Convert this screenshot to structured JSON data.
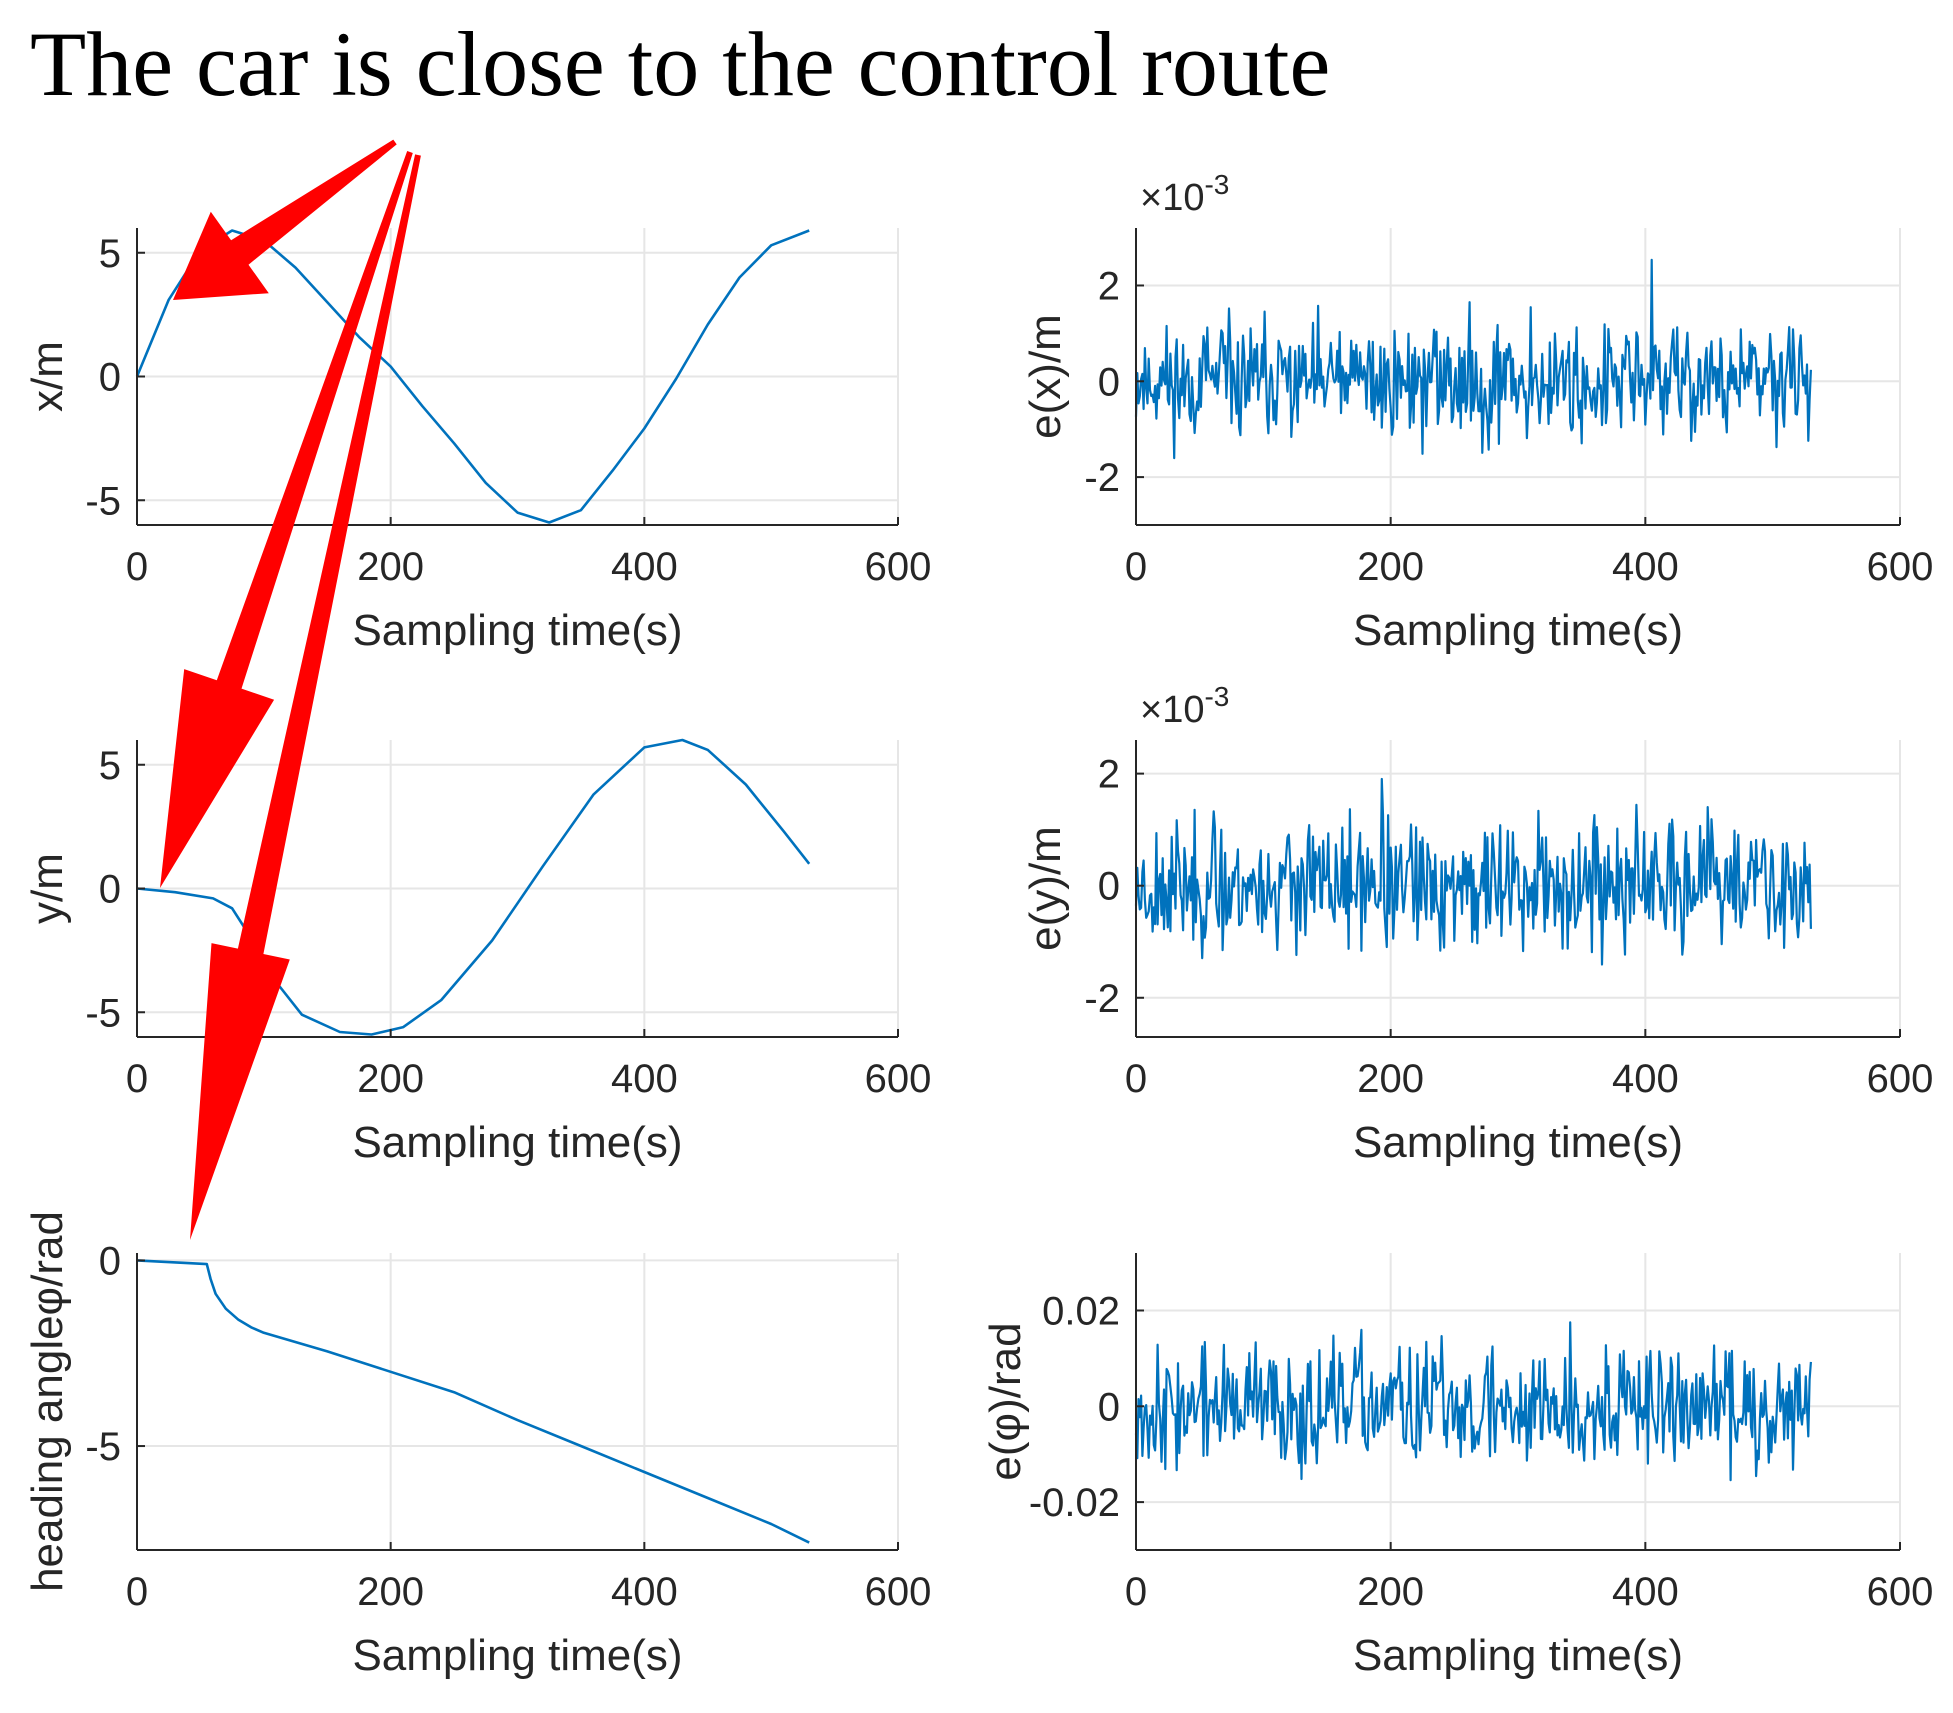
{
  "title": "The car is close to the control route",
  "colors": {
    "line": "#0072BD",
    "grid": "#e6e6e6",
    "axis": "#262626",
    "arrow": "#ff0000"
  },
  "chart_data": [
    {
      "type": "line",
      "id": "x",
      "xlabel": "Sampling time(s)",
      "ylabel": "x/m",
      "xlim": [
        0,
        600
      ],
      "ylim": [
        -6,
        6
      ],
      "xticks": [
        0,
        200,
        400,
        600
      ],
      "xtick_labels": [
        "0",
        "200",
        "400",
        "600"
      ],
      "yticks": [
        -5,
        0,
        5
      ],
      "ytick_labels": [
        "-5",
        "0",
        "5"
      ],
      "grid": true,
      "series": [
        {
          "x": [
            0,
            25,
            50,
            75,
            100,
            125,
            150,
            175,
            200,
            225,
            250,
            275,
            300,
            325,
            350,
            375,
            400,
            425,
            450,
            475,
            500,
            530
          ],
          "y": [
            0,
            3.1,
            5.1,
            5.9,
            5.5,
            4.4,
            3.0,
            1.6,
            0.4,
            -1.2,
            -2.7,
            -4.3,
            -5.5,
            -5.9,
            -5.4,
            -3.8,
            -2.1,
            -0.1,
            2.1,
            4.0,
            5.3,
            5.9
          ]
        }
      ]
    },
    {
      "type": "line",
      "id": "ex",
      "xlabel": "Sampling time(s)",
      "ylabel": "e(x)/m",
      "exponent": "×10-3",
      "xlim": [
        0,
        600
      ],
      "ylim": [
        -3,
        3.2
      ],
      "xticks": [
        0,
        200,
        400,
        600
      ],
      "xtick_labels": [
        "0",
        "200",
        "400",
        "600"
      ],
      "yticks": [
        -2,
        0,
        2
      ],
      "ytick_labels": [
        "-2",
        "0",
        "2"
      ],
      "grid": true,
      "series": [
        {
          "noise": {
            "n": 530,
            "x_end": 530,
            "amplitude": 0.9,
            "min": -3.0,
            "max": 3.2,
            "seed": 11
          }
        }
      ]
    },
    {
      "type": "line",
      "id": "y",
      "xlabel": "Sampling time(s)",
      "ylabel": "y/m",
      "xlim": [
        0,
        600
      ],
      "ylim": [
        -6,
        6
      ],
      "xticks": [
        0,
        200,
        400,
        600
      ],
      "xtick_labels": [
        "0",
        "200",
        "400",
        "600"
      ],
      "yticks": [
        -5,
        0,
        5
      ],
      "ytick_labels": [
        "-5",
        "0",
        "5"
      ],
      "grid": true,
      "series": [
        {
          "x": [
            0,
            30,
            60,
            75,
            90,
            110,
            130,
            160,
            185,
            210,
            240,
            280,
            320,
            360,
            400,
            430,
            450,
            480,
            510,
            530
          ],
          "y": [
            0,
            -0.15,
            -0.4,
            -0.8,
            -2.0,
            -3.8,
            -5.1,
            -5.8,
            -5.9,
            -5.6,
            -4.5,
            -2.1,
            0.9,
            3.8,
            5.7,
            6.0,
            5.6,
            4.2,
            2.3,
            1.0
          ]
        }
      ]
    },
    {
      "type": "line",
      "id": "ey",
      "xlabel": "Sampling time(s)",
      "ylabel": "e(y)/m",
      "exponent": "×10-3",
      "xlim": [
        0,
        600
      ],
      "ylim": [
        -2.7,
        2.6
      ],
      "xticks": [
        0,
        200,
        400,
        600
      ],
      "xtick_labels": [
        "0",
        "200",
        "400",
        "600"
      ],
      "yticks": [
        -2,
        0,
        2
      ],
      "ytick_labels": [
        "-2",
        "0",
        "2"
      ],
      "grid": true,
      "series": [
        {
          "noise": {
            "n": 530,
            "x_end": 530,
            "amplitude": 0.85,
            "min": -2.6,
            "max": 2.5,
            "seed": 23
          }
        }
      ]
    },
    {
      "type": "line",
      "id": "phi",
      "xlabel": "Sampling time(s)",
      "ylabel": "heading angleφ/rad",
      "xlim": [
        0,
        600
      ],
      "ylim": [
        -7.8,
        0.2
      ],
      "xticks": [
        0,
        200,
        400,
        600
      ],
      "xtick_labels": [
        "0",
        "200",
        "400",
        "600"
      ],
      "yticks": [
        -5,
        0
      ],
      "ytick_labels": [
        "-5",
        "0"
      ],
      "grid": true,
      "series": [
        {
          "x": [
            0,
            55,
            58,
            62,
            70,
            80,
            90,
            100,
            150,
            200,
            250,
            300,
            350,
            400,
            450,
            500,
            530
          ],
          "y": [
            0,
            -0.1,
            -0.5,
            -0.9,
            -1.3,
            -1.6,
            -1.8,
            -1.95,
            -2.45,
            -3.0,
            -3.55,
            -4.3,
            -5.0,
            -5.7,
            -6.4,
            -7.1,
            -7.6
          ]
        }
      ]
    },
    {
      "type": "line",
      "id": "ephi",
      "xlabel": "Sampling time(s)",
      "ylabel": "e(φ)/rad",
      "xlim": [
        0,
        600
      ],
      "ylim": [
        -0.03,
        0.032
      ],
      "xticks": [
        0,
        200,
        400,
        600
      ],
      "xtick_labels": [
        "0",
        "200",
        "400",
        "600"
      ],
      "yticks": [
        -0.02,
        0,
        0.02
      ],
      "ytick_labels": [
        "-0.02",
        "0",
        "0.02"
      ],
      "grid": true,
      "series": [
        {
          "noise": {
            "n": 530,
            "x_end": 530,
            "amplitude": 0.0095,
            "min": -0.03,
            "max": 0.031,
            "seed": 37
          }
        }
      ]
    }
  ]
}
